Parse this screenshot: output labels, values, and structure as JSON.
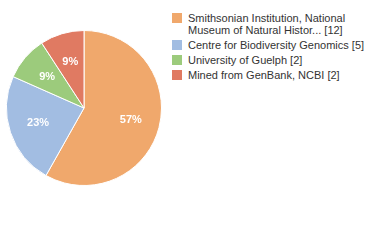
{
  "chart_data": {
    "type": "pie",
    "categories": [
      "Smithsonian Institution, National Museum of Natural Histor... [12]",
      "Centre for Biodiversity Genomics [5]",
      "University of Guelph [2]",
      "Mined from GenBank, NCBI [2]"
    ],
    "values": [
      57,
      23,
      9,
      9
    ],
    "value_labels": [
      "57%",
      "23%",
      "9%",
      "9%"
    ],
    "colors": [
      "#f0a86c",
      "#a2bde2",
      "#9ccb7c",
      "#e07a62"
    ],
    "data_labels": true,
    "legend": "right"
  }
}
